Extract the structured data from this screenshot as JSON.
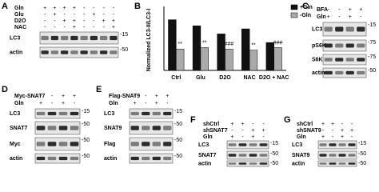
{
  "panels": {
    "A": {
      "label": "A",
      "conditions": [
        {
          "name": "Gln",
          "signs": [
            "+",
            "+",
            "+",
            "+",
            "-",
            "-",
            "-",
            "-"
          ]
        },
        {
          "name": "Glu",
          "signs": [
            "-",
            "+",
            "-",
            "-",
            "-",
            "+",
            "-",
            "-"
          ]
        },
        {
          "name": "D2O",
          "signs": [
            "-",
            "-",
            "+",
            "+",
            "-",
            "-",
            "+",
            "+"
          ]
        },
        {
          "name": "NAC",
          "signs": [
            "-",
            "-",
            "-",
            "+",
            "-",
            "-",
            "-",
            "+"
          ]
        }
      ],
      "blots": [
        {
          "name": "LC3",
          "marker": "-15"
        },
        {
          "name": "actin",
          "marker": "-50"
        }
      ]
    },
    "C": {
      "label": "C",
      "conditions": [
        {
          "name": "BFA",
          "signs": [
            "-",
            "-",
            "+",
            "+"
          ]
        },
        {
          "name": "Gln",
          "signs": [
            "+",
            "-",
            "+",
            "-"
          ]
        }
      ],
      "blots": [
        {
          "name": "LC3",
          "marker": "-15"
        },
        {
          "name": "pS6K",
          "marker": "-75"
        },
        {
          "name": "S6K",
          "marker": "-75"
        },
        {
          "name": "actin",
          "marker": "-50"
        }
      ]
    },
    "D": {
      "label": "D",
      "conditions": [
        {
          "name": "Myc-SNAT7",
          "signs": [
            "-",
            "-",
            "+",
            "+"
          ]
        },
        {
          "name": "Gln",
          "signs": [
            "+",
            "-",
            "+",
            "-"
          ]
        }
      ],
      "blots": [
        {
          "name": "LC3",
          "marker": "-15"
        },
        {
          "name": "SNAT7",
          "marker": "-50"
        },
        {
          "name": "Myc",
          "marker": "-50"
        },
        {
          "name": "actin",
          "marker": "-50"
        }
      ]
    },
    "E": {
      "label": "E",
      "conditions": [
        {
          "name": "Flag-SNAT9",
          "signs": [
            "-",
            "-",
            "+",
            "+"
          ]
        },
        {
          "name": "Gln",
          "signs": [
            "+",
            "-",
            "+",
            "-"
          ]
        }
      ],
      "blots": [
        {
          "name": "LC3",
          "marker": "-15"
        },
        {
          "name": "SNAT9",
          "marker": "-50"
        },
        {
          "name": "Flag",
          "marker": "-50"
        },
        {
          "name": "actin",
          "marker": "-50"
        }
      ]
    },
    "F": {
      "label": "F",
      "conditions": [
        {
          "name": "shCtrl",
          "signs": [
            "+",
            "+",
            "-",
            "-"
          ]
        },
        {
          "name": "shSNAT7",
          "signs": [
            "-",
            "-",
            "+",
            "+"
          ]
        },
        {
          "name": "Gln",
          "signs": [
            "+",
            "-",
            "+",
            "-"
          ]
        }
      ],
      "blots": [
        {
          "name": "LC3",
          "marker": "-15"
        },
        {
          "name": "SNAT7",
          "marker": "-50"
        },
        {
          "name": "actin",
          "marker": "-50"
        }
      ]
    },
    "G": {
      "label": "G",
      "conditions": [
        {
          "name": "shCtrl",
          "signs": [
            "+",
            "+",
            "-",
            "-"
          ]
        },
        {
          "name": "shSNAT9",
          "signs": [
            "-",
            "-",
            "+",
            "+"
          ]
        },
        {
          "name": "Gln",
          "signs": [
            "+",
            "-",
            "+",
            "-"
          ]
        }
      ],
      "blots": [
        {
          "name": "LC3",
          "marker": "-15"
        },
        {
          "name": "SNAT9",
          "marker": "-50"
        },
        {
          "name": "actin",
          "marker": "-50"
        }
      ]
    }
  },
  "chart_data": {
    "type": "bar",
    "label": "B",
    "y_label": "Normalized LC3-II/LC3-I",
    "categories": [
      "Ctrl",
      "Glu",
      "D2O",
      "NAC",
      "D2O + NAC"
    ],
    "series": [
      {
        "name": "+Gln",
        "color": "#111111",
        "values": [
          1.0,
          0.88,
          0.72,
          0.82,
          0.55
        ]
      },
      {
        "name": "-Gln",
        "color": "#aaaaaa",
        "values": [
          0.42,
          0.45,
          0.42,
          0.4,
          0.45
        ]
      }
    ],
    "annotations": [
      "**",
      "**",
      "###",
      "**",
      "###"
    ],
    "ylim": [
      0,
      1.2
    ]
  }
}
